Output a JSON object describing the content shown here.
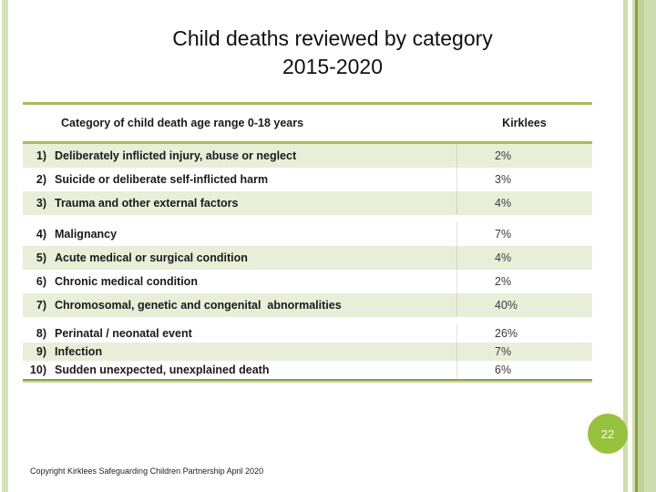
{
  "slide": {
    "title_line1": "Child deaths reviewed by category",
    "title_line2": "2015-2020",
    "page_number": "22",
    "footer": "Copyright Kirklees Safeguarding Children Partnership April 2020"
  },
  "table": {
    "header": {
      "category_col": "Category of child death age range 0-18 years",
      "value_col": "Kirklees"
    },
    "groups": [
      {
        "rows": [
          {
            "num": "1)",
            "label": "Deliberately inflicted injury, abuse or neglect",
            "value": "2%",
            "shaded": true
          },
          {
            "num": "2)",
            "label": "Suicide or deliberate self-inflicted harm",
            "value": "3%",
            "shaded": false
          },
          {
            "num": "3)",
            "label": "Trauma and other external factors",
            "value": "4%",
            "shaded": true
          }
        ]
      },
      {
        "rows": [
          {
            "num": "4)",
            "label": "Malignancy",
            "value": "7%",
            "shaded": false
          },
          {
            "num": "5)",
            "label": "Acute medical or surgical condition",
            "value": "4%",
            "shaded": true
          },
          {
            "num": "6)",
            "label": "Chronic medical condition",
            "value": "2%",
            "shaded": false
          },
          {
            "num": "7)",
            "label": "Chromosomal, genetic and congenital  abnormalities",
            "value": "40%",
            "shaded": true
          }
        ]
      },
      {
        "rows": [
          {
            "num": "8)",
            "label": "Perinatal / neonatal event",
            "value": "26%",
            "shaded": false
          },
          {
            "num": "9)",
            "label": "Infection",
            "value": "7%",
            "shaded": true
          },
          {
            "num": "10)",
            "label": "Sudden unexpected, unexplained death",
            "value": "6%",
            "shaded": false
          }
        ]
      }
    ]
  },
  "colors": {
    "accent_olive": "#a9bb5b",
    "row_shade": "#e8efd9",
    "page_circle": "#97c23e",
    "side_stripe_light": "#cfddae",
    "side_stripe_dark": "#8ba23c"
  }
}
